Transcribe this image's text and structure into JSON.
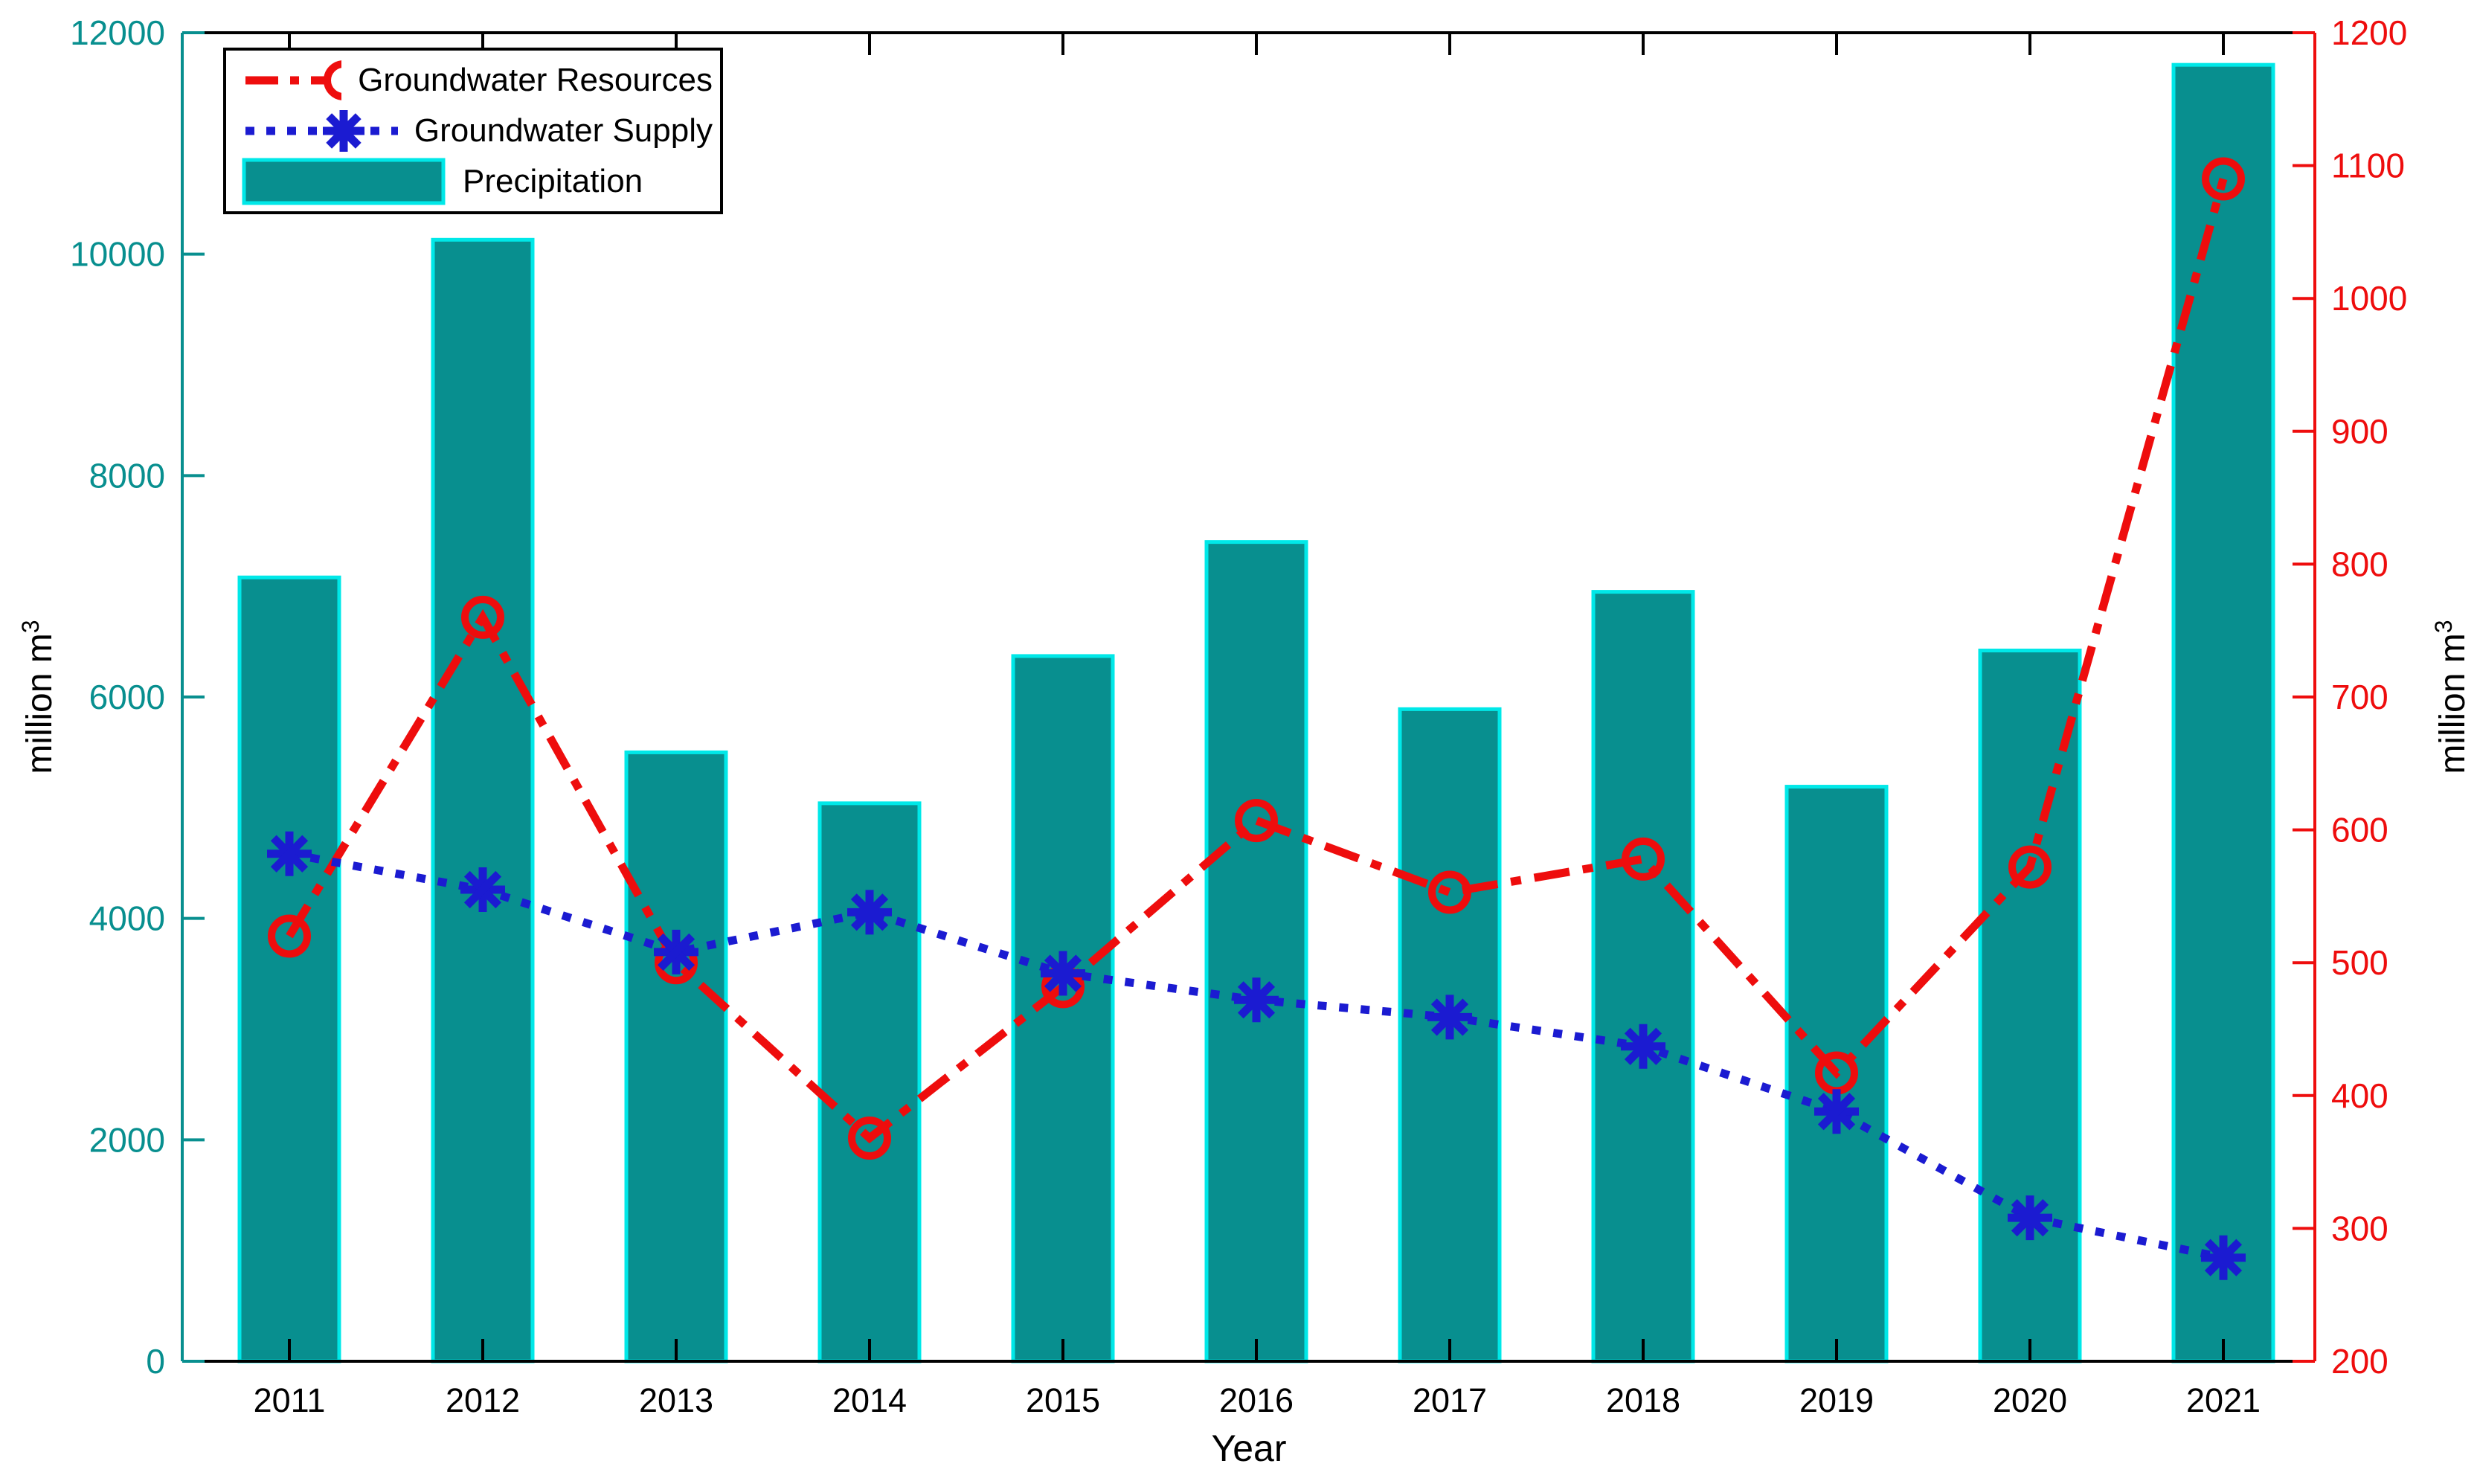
{
  "figure": {
    "background": "#ffffff"
  },
  "chart_data": {
    "type": "combo-bar-line",
    "categories": [
      "2011",
      "2012",
      "2013",
      "2014",
      "2015",
      "2016",
      "2017",
      "2018",
      "2019",
      "2020",
      "2021"
    ],
    "series": [
      {
        "name": "Groundwater Resources",
        "type": "line",
        "axis": "right",
        "line_style": "dash-dot",
        "marker": "circle",
        "color": "#ee0d0d",
        "values": [
          520,
          760,
          500,
          368,
          482,
          607,
          553,
          578,
          417,
          572,
          1090
        ]
      },
      {
        "name": "Groundwater Supply",
        "type": "line",
        "axis": "right",
        "line_style": "dotted",
        "marker": "asterisk",
        "color": "#1b1bd1",
        "values": [
          582,
          555,
          508,
          538,
          492,
          472,
          459,
          437,
          388,
          308,
          278
        ]
      },
      {
        "name": "Precipitation",
        "type": "bar",
        "axis": "left",
        "color": "#088f8f",
        "edge_color": "#00e8e8",
        "values": [
          7080,
          10130,
          5500,
          5040,
          6370,
          7400,
          5890,
          6950,
          5190,
          6420,
          11710
        ]
      }
    ],
    "left_axis": {
      "label_text": "million m",
      "label_sup": "3",
      "min": 0,
      "max": 12000,
      "tick_step": 2000,
      "ticks": [
        0,
        2000,
        4000,
        6000,
        8000,
        10000,
        12000
      ],
      "color": "#088f8f"
    },
    "right_axis": {
      "label_text": "million m",
      "label_sup": "3",
      "min": 200,
      "max": 1200,
      "tick_step": 100,
      "ticks": [
        200,
        300,
        400,
        500,
        600,
        700,
        800,
        900,
        1000,
        1100,
        1200
      ],
      "color": "#ee0d0d"
    },
    "x_axis": {
      "label": "Year",
      "color": "#000000"
    },
    "legend_position": "top-left",
    "grid": false
  }
}
